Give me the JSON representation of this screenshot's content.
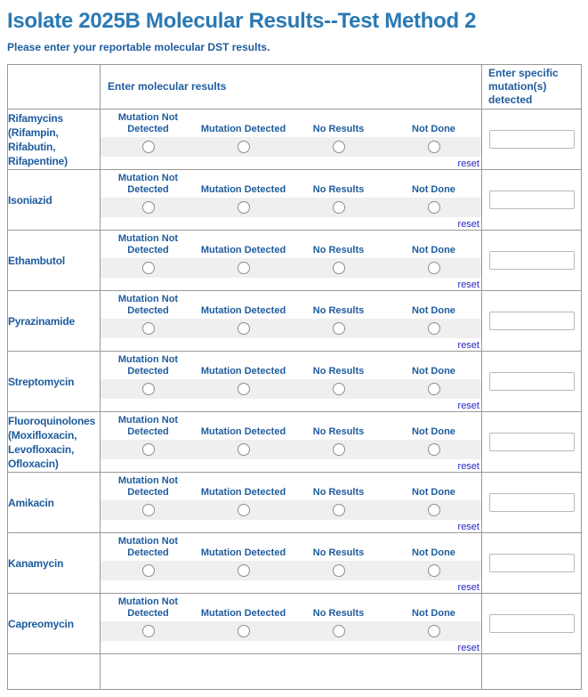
{
  "page": {
    "title": "Isolate 2025B Molecular Results--Test Method 2",
    "subtitle": "Please enter your reportable molecular DST results."
  },
  "table": {
    "header": {
      "drug_column_label": "",
      "results_column_label": "Enter molecular results",
      "mutation_column_label": "Enter specific mutation(s) detected"
    },
    "options": [
      "Mutation Not Detected",
      "Mutation Detected",
      "No Results",
      "Not Done"
    ],
    "reset_label": "reset",
    "rows": [
      {
        "drug": "Rifamycins (Rifampin, Rifabutin, Rifapentine)",
        "selected": null,
        "mutation_value": ""
      },
      {
        "drug": "Isoniazid",
        "selected": null,
        "mutation_value": ""
      },
      {
        "drug": "Ethambutol",
        "selected": null,
        "mutation_value": ""
      },
      {
        "drug": "Pyrazinamide",
        "selected": null,
        "mutation_value": ""
      },
      {
        "drug": "Streptomycin",
        "selected": null,
        "mutation_value": ""
      },
      {
        "drug": "Fluoroquinolones (Moxifloxacin, Levofloxacin, Ofloxacin)",
        "selected": null,
        "mutation_value": ""
      },
      {
        "drug": "Amikacin",
        "selected": null,
        "mutation_value": ""
      },
      {
        "drug": "Kanamycin",
        "selected": null,
        "mutation_value": ""
      },
      {
        "drug": "Capreomycin",
        "selected": null,
        "mutation_value": ""
      }
    ]
  },
  "colors": {
    "title_blue": "#2a79b3",
    "text_blue": "#1e5c9e",
    "table_border": "#999999",
    "radio_strip_gray": "#efefef",
    "reset_link_blue": "#2525c4"
  }
}
